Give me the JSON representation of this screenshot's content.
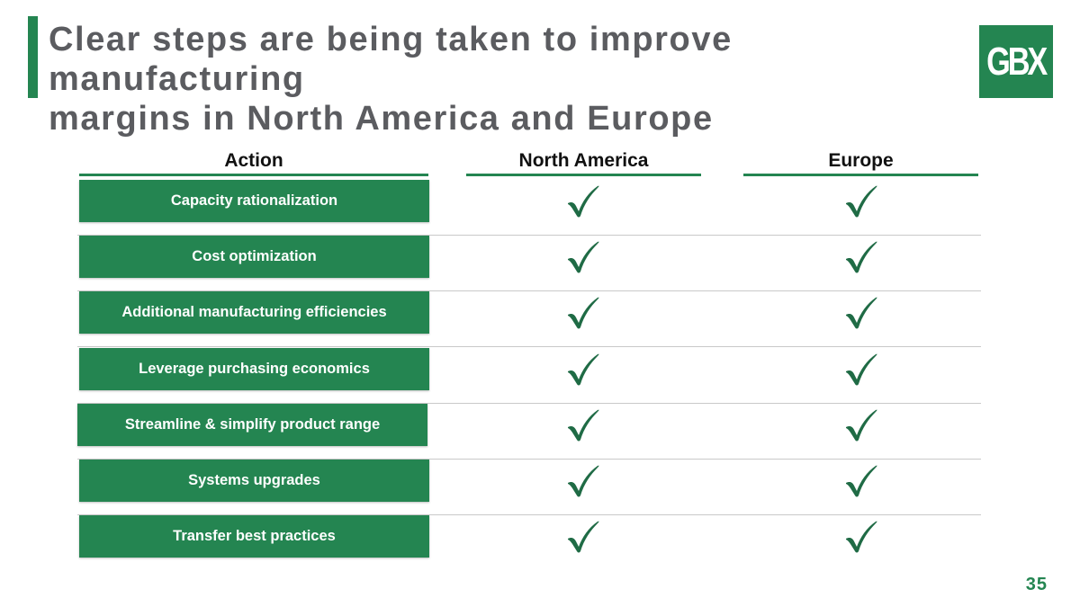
{
  "header": {
    "title_line1": "Clear steps are being taken to improve manufacturing",
    "title_line2": "margins in North America and Europe",
    "logo_text": "GBX"
  },
  "table": {
    "columns": [
      "Action",
      "North America",
      "Europe"
    ],
    "rows": [
      {
        "action": "Capacity rationalization",
        "north_america": true,
        "europe": true
      },
      {
        "action": "Cost optimization",
        "north_america": true,
        "europe": true
      },
      {
        "action": "Additional manufacturing efficiencies",
        "north_america": true,
        "europe": true
      },
      {
        "action": "Leverage purchasing economics",
        "north_america": true,
        "europe": true
      },
      {
        "action": "Streamline & simplify product range",
        "north_america": true,
        "europe": true
      },
      {
        "action": "Systems upgrades",
        "north_america": true,
        "europe": true
      },
      {
        "action": "Transfer best practices",
        "north_america": true,
        "europe": true
      }
    ]
  },
  "footer": {
    "page_number": "35"
  },
  "colors": {
    "accent": "#248551",
    "title": "#5b5c60",
    "check": "#1f6b45"
  },
  "icons": {
    "check": "checkmark-icon"
  }
}
